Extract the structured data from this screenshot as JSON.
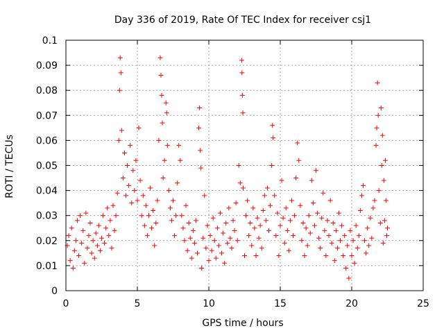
{
  "chart_data": {
    "type": "scatter",
    "title": "Day 336 of 2019, Rate Of TEC Index for receiver csj1",
    "xlabel": "GPS time / hours",
    "ylabel": "ROTI / TECUs",
    "xlim": [
      0,
      25
    ],
    "ylim": [
      0,
      0.1
    ],
    "xticks": [
      0,
      5,
      10,
      15,
      20,
      25
    ],
    "xtick_labels": [
      "0",
      "5",
      "10",
      "15",
      "20",
      "25"
    ],
    "yticks": [
      0,
      0.01,
      0.02,
      0.03,
      0.04,
      0.05,
      0.06,
      0.07,
      0.08,
      0.09,
      0.1
    ],
    "ytick_labels": [
      "0",
      "0.01",
      "0.02",
      "0.03",
      "0.04",
      "0.05",
      "0.06",
      "0.07",
      "0.08",
      "0.09",
      "0.1"
    ],
    "grid": true,
    "marker": "+",
    "color": "#ff0000",
    "series": [
      {
        "name": "ROTI",
        "points": [
          [
            0.1,
            0.018
          ],
          [
            0.2,
            0.022
          ],
          [
            0.3,
            0.012
          ],
          [
            0.4,
            0.025
          ],
          [
            0.5,
            0.009
          ],
          [
            0.6,
            0.016
          ],
          [
            0.7,
            0.02
          ],
          [
            0.8,
            0.028
          ],
          [
            0.9,
            0.014
          ],
          [
            1.0,
            0.03
          ],
          [
            1.1,
            0.019
          ],
          [
            1.2,
            0.024
          ],
          [
            1.3,
            0.011
          ],
          [
            1.4,
            0.031
          ],
          [
            1.5,
            0.017
          ],
          [
            1.6,
            0.022
          ],
          [
            1.7,
            0.027
          ],
          [
            1.8,
            0.015
          ],
          [
            1.9,
            0.02
          ],
          [
            2.0,
            0.013
          ],
          [
            2.1,
            0.023
          ],
          [
            2.2,
            0.018
          ],
          [
            2.3,
            0.026
          ],
          [
            2.4,
            0.016
          ],
          [
            2.5,
            0.021
          ],
          [
            2.6,
            0.03
          ],
          [
            2.7,
            0.019
          ],
          [
            2.8,
            0.025
          ],
          [
            2.9,
            0.033
          ],
          [
            3.0,
            0.022
          ],
          [
            3.1,
            0.028
          ],
          [
            3.2,
            0.017
          ],
          [
            3.3,
            0.034
          ],
          [
            3.4,
            0.024
          ],
          [
            3.5,
            0.03
          ],
          [
            3.6,
            0.039
          ],
          [
            3.7,
            0.06
          ],
          [
            3.75,
            0.08
          ],
          [
            3.8,
            0.093
          ],
          [
            3.85,
            0.087
          ],
          [
            3.9,
            0.064
          ],
          [
            4.0,
            0.045
          ],
          [
            4.1,
            0.055
          ],
          [
            4.2,
            0.038
          ],
          [
            4.3,
            0.05
          ],
          [
            4.4,
            0.042
          ],
          [
            4.5,
            0.058
          ],
          [
            4.6,
            0.035
          ],
          [
            4.7,
            0.048
          ],
          [
            4.8,
            0.04
          ],
          [
            4.9,
            0.052
          ],
          [
            5.0,
            0.036
          ],
          [
            5.1,
            0.065
          ],
          [
            5.2,
            0.044
          ],
          [
            5.3,
            0.03
          ],
          [
            5.4,
            0.038
          ],
          [
            5.5,
            0.026
          ],
          [
            5.6,
            0.034
          ],
          [
            5.7,
            0.022
          ],
          [
            5.8,
            0.03
          ],
          [
            5.9,
            0.041
          ],
          [
            6.0,
            0.025
          ],
          [
            6.1,
            0.032
          ],
          [
            6.2,
            0.018
          ],
          [
            6.3,
            0.027
          ],
          [
            6.4,
            0.036
          ],
          [
            6.5,
            0.06
          ],
          [
            6.6,
            0.093
          ],
          [
            6.65,
            0.086
          ],
          [
            6.7,
            0.078
          ],
          [
            6.75,
            0.067
          ],
          [
            6.8,
            0.045
          ],
          [
            6.9,
            0.052
          ],
          [
            7.0,
            0.075
          ],
          [
            7.05,
            0.071
          ],
          [
            7.1,
            0.058
          ],
          [
            7.2,
            0.04
          ],
          [
            7.3,
            0.033
          ],
          [
            7.4,
            0.028
          ],
          [
            7.5,
            0.036
          ],
          [
            7.6,
            0.022
          ],
          [
            7.7,
            0.03
          ],
          [
            7.8,
            0.043
          ],
          [
            7.9,
            0.058
          ],
          [
            8.0,
            0.052
          ],
          [
            8.1,
            0.03
          ],
          [
            8.2,
            0.025
          ],
          [
            8.3,
            0.02
          ],
          [
            8.4,
            0.034
          ],
          [
            8.5,
            0.016
          ],
          [
            8.6,
            0.027
          ],
          [
            8.7,
            0.021
          ],
          [
            8.8,
            0.013
          ],
          [
            8.9,
            0.024
          ],
          [
            9.0,
            0.019
          ],
          [
            9.1,
            0.028
          ],
          [
            9.2,
            0.015
          ],
          [
            9.3,
            0.065
          ],
          [
            9.35,
            0.073
          ],
          [
            9.4,
            0.056
          ],
          [
            9.45,
            0.049
          ],
          [
            9.5,
            0.009
          ],
          [
            9.6,
            0.021
          ],
          [
            9.7,
            0.038
          ],
          [
            9.8,
            0.017
          ],
          [
            9.9,
            0.026
          ],
          [
            10.0,
            0.012
          ],
          [
            10.1,
            0.022
          ],
          [
            10.2,
            0.016
          ],
          [
            10.3,
            0.029
          ],
          [
            10.4,
            0.02
          ],
          [
            10.5,
            0.013
          ],
          [
            10.6,
            0.025
          ],
          [
            10.7,
            0.018
          ],
          [
            10.8,
            0.031
          ],
          [
            10.9,
            0.015
          ],
          [
            11.0,
            0.023
          ],
          [
            11.1,
            0.011
          ],
          [
            11.2,
            0.027
          ],
          [
            11.3,
            0.019
          ],
          [
            11.4,
            0.033
          ],
          [
            11.5,
            0.021
          ],
          [
            11.6,
            0.017
          ],
          [
            11.7,
            0.028
          ],
          [
            11.8,
            0.024
          ],
          [
            11.9,
            0.035
          ],
          [
            12.0,
            0.02
          ],
          [
            12.1,
            0.05
          ],
          [
            12.2,
            0.043
          ],
          [
            12.3,
            0.092
          ],
          [
            12.32,
            0.087
          ],
          [
            12.35,
            0.078
          ],
          [
            12.38,
            0.071
          ],
          [
            12.4,
            0.041
          ],
          [
            12.5,
            0.014
          ],
          [
            12.6,
            0.03
          ],
          [
            12.7,
            0.036
          ],
          [
            12.8,
            0.022
          ],
          [
            12.9,
            0.027
          ],
          [
            13.0,
            0.018
          ],
          [
            13.1,
            0.033
          ],
          [
            13.2,
            0.025
          ],
          [
            13.3,
            0.014
          ],
          [
            13.4,
            0.029
          ],
          [
            13.5,
            0.021
          ],
          [
            13.6,
            0.026
          ],
          [
            13.7,
            0.017
          ],
          [
            13.8,
            0.032
          ],
          [
            13.9,
            0.038
          ],
          [
            14.0,
            0.028
          ],
          [
            14.1,
            0.041
          ],
          [
            14.2,
            0.024
          ],
          [
            14.3,
            0.034
          ],
          [
            14.4,
            0.05
          ],
          [
            14.45,
            0.066
          ],
          [
            14.5,
            0.061
          ],
          [
            14.6,
            0.038
          ],
          [
            14.7,
            0.022
          ],
          [
            14.8,
            0.031
          ],
          [
            14.9,
            0.014
          ],
          [
            15.0,
            0.026
          ],
          [
            15.1,
            0.044
          ],
          [
            15.2,
            0.029
          ],
          [
            15.3,
            0.019
          ],
          [
            15.4,
            0.033
          ],
          [
            15.5,
            0.024
          ],
          [
            15.6,
            0.016
          ],
          [
            15.7,
            0.028
          ],
          [
            15.8,
            0.036
          ],
          [
            15.9,
            0.022
          ],
          [
            16.0,
            0.03
          ],
          [
            16.1,
            0.045
          ],
          [
            16.2,
            0.059
          ],
          [
            16.3,
            0.052
          ],
          [
            16.4,
            0.034
          ],
          [
            16.5,
            0.02
          ],
          [
            16.6,
            0.027
          ],
          [
            16.7,
            0.014
          ],
          [
            16.8,
            0.025
          ],
          [
            16.9,
            0.018
          ],
          [
            17.0,
            0.03
          ],
          [
            17.1,
            0.023
          ],
          [
            17.2,
            0.044
          ],
          [
            17.3,
            0.035
          ],
          [
            17.4,
            0.026
          ],
          [
            17.5,
            0.048
          ],
          [
            17.6,
            0.031
          ],
          [
            17.7,
            0.021
          ],
          [
            17.8,
            0.017
          ],
          [
            17.9,
            0.029
          ],
          [
            18.0,
            0.039
          ],
          [
            18.1,
            0.024
          ],
          [
            18.2,
            0.014
          ],
          [
            18.3,
            0.028
          ],
          [
            18.4,
            0.022
          ],
          [
            18.5,
            0.036
          ],
          [
            18.6,
            0.019
          ],
          [
            18.7,
            0.027
          ],
          [
            18.8,
            0.012
          ],
          [
            18.9,
            0.024
          ],
          [
            19.0,
            0.017
          ],
          [
            19.1,
            0.031
          ],
          [
            19.2,
            0.02
          ],
          [
            19.3,
            0.026
          ],
          [
            19.4,
            0.014
          ],
          [
            19.5,
            0.022
          ],
          [
            19.6,
            0.009
          ],
          [
            19.7,
            0.018
          ],
          [
            19.8,
            0.005
          ],
          [
            19.9,
            0.024
          ],
          [
            20.0,
            0.014
          ],
          [
            20.1,
            0.02
          ],
          [
            20.2,
            0.011
          ],
          [
            20.3,
            0.026
          ],
          [
            20.4,
            0.017
          ],
          [
            20.5,
            0.022
          ],
          [
            20.6,
            0.032
          ],
          [
            20.7,
            0.038
          ],
          [
            20.8,
            0.042
          ],
          [
            20.9,
            0.02
          ],
          [
            21.0,
            0.015
          ],
          [
            21.1,
            0.025
          ],
          [
            21.2,
            0.018
          ],
          [
            21.3,
            0.029
          ],
          [
            21.4,
            0.021
          ],
          [
            21.5,
            0.033
          ],
          [
            21.6,
            0.036
          ],
          [
            21.7,
            0.058
          ],
          [
            21.75,
            0.065
          ],
          [
            21.8,
            0.083
          ],
          [
            21.85,
            0.07
          ],
          [
            21.9,
            0.04
          ],
          [
            22.0,
            0.027
          ],
          [
            22.05,
            0.073
          ],
          [
            22.1,
            0.05
          ],
          [
            22.15,
            0.062
          ],
          [
            22.2,
            0.019
          ],
          [
            22.25,
            0.044
          ],
          [
            22.3,
            0.028
          ],
          [
            22.35,
            0.052
          ],
          [
            22.4,
            0.036
          ],
          [
            22.45,
            0.022
          ],
          [
            22.5,
            0.025
          ]
        ]
      }
    ]
  }
}
